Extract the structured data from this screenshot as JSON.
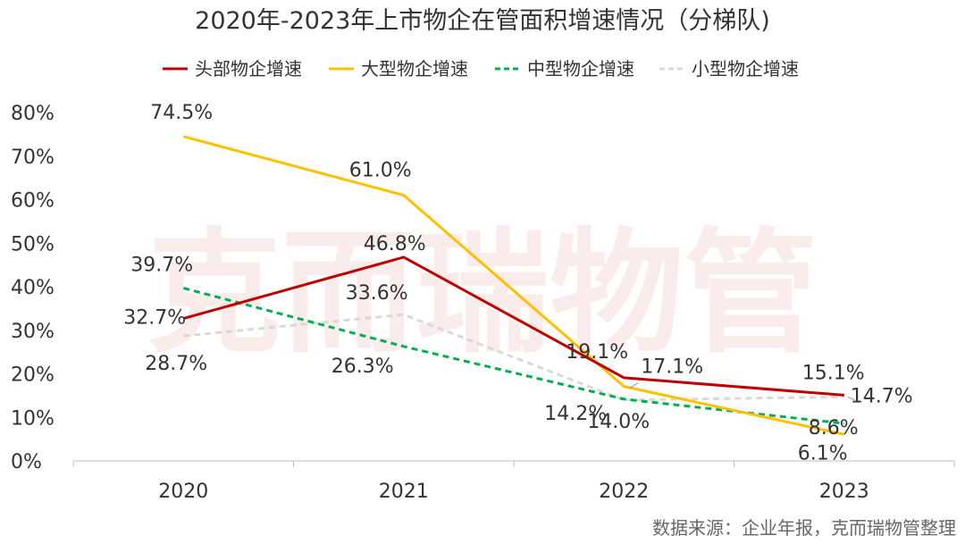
{
  "chart_data": {
    "type": "line",
    "title": "2020年-2023年上市物企在管面积增速情况（分梯队)",
    "categories": [
      "2020",
      "2021",
      "2022",
      "2023"
    ],
    "y_ticks": [
      "0%",
      "10%",
      "20%",
      "30%",
      "40%",
      "50%",
      "60%",
      "70%",
      "80%"
    ],
    "ylim": [
      0,
      80
    ],
    "y_unit": "%",
    "grid": false,
    "legend_position": "top",
    "series": [
      {
        "name": "头部物企增速",
        "values": [
          32.7,
          46.8,
          19.1,
          15.1
        ],
        "labels": [
          "32.7%",
          "46.8%",
          "19.1%",
          "15.1%"
        ],
        "color": "#C00000",
        "style": "solid"
      },
      {
        "name": "大型物企增速",
        "values": [
          74.5,
          61.0,
          17.1,
          6.1
        ],
        "labels": [
          "74.5%",
          "61.0%",
          "17.1%",
          "6.1%"
        ],
        "color": "#FFC000",
        "style": "solid"
      },
      {
        "name": "中型物企增速",
        "values": [
          39.7,
          26.3,
          14.2,
          8.6
        ],
        "labels": [
          "39.7%",
          "26.3%",
          "14.2%",
          "8.6%"
        ],
        "color": "#00B050",
        "style": "dashed"
      },
      {
        "name": "小型物企增速",
        "values": [
          28.7,
          33.6,
          14.0,
          14.7
        ],
        "labels": [
          "28.7%",
          "33.6%",
          "14.0%",
          "14.7%"
        ],
        "color": "#D9D9D9",
        "style": "dashed"
      }
    ],
    "watermark": "克而瑞物管",
    "source": "数据来源：企业年报，克而瑞物管整理"
  }
}
